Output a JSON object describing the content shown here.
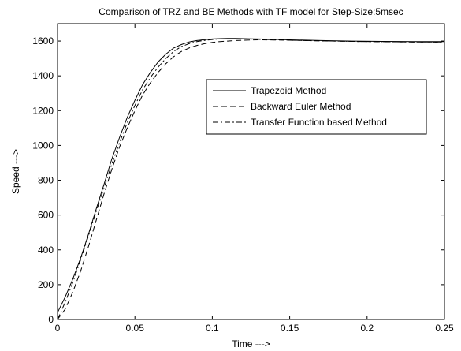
{
  "chart_data": {
    "type": "line",
    "title": "Comparison of TRZ and BE Methods with TF model for Step-Size:5msec",
    "xlabel": "Time --->",
    "ylabel": "Speed --->",
    "xlim": [
      0,
      0.25
    ],
    "ylim": [
      0,
      1700
    ],
    "xticks": [
      0,
      0.05,
      0.1,
      0.15,
      0.2,
      0.25
    ],
    "xtick_labels": [
      "0",
      "0.05",
      "0.1",
      "0.15",
      "0.2",
      "0.25"
    ],
    "yticks": [
      0,
      200,
      400,
      600,
      800,
      1000,
      1200,
      1400,
      1600
    ],
    "ytick_labels": [
      "0",
      "200",
      "400",
      "600",
      "800",
      "1000",
      "1200",
      "1400",
      "1600"
    ],
    "grid": false,
    "legend_position": "top-right",
    "series": [
      {
        "name": "Trapezoid Method",
        "style": "solid",
        "color": "#000000",
        "x": [
          0,
          0.005,
          0.01,
          0.015,
          0.02,
          0.025,
          0.03,
          0.035,
          0.04,
          0.045,
          0.05,
          0.055,
          0.06,
          0.065,
          0.07,
          0.075,
          0.08,
          0.085,
          0.09,
          0.095,
          0.1,
          0.105,
          0.11,
          0.115,
          0.12,
          0.125,
          0.13,
          0.14,
          0.15,
          0.17,
          0.19,
          0.21,
          0.23,
          0.25
        ],
        "values": [
          40,
          130,
          235,
          355,
          490,
          635,
          775,
          920,
          1045,
          1160,
          1260,
          1350,
          1420,
          1480,
          1525,
          1560,
          1580,
          1595,
          1603,
          1608,
          1612,
          1614,
          1615,
          1615,
          1614,
          1613,
          1612,
          1610,
          1607,
          1603,
          1600,
          1598,
          1597,
          1597
        ]
      },
      {
        "name": "Backward Euler Method",
        "style": "dashed",
        "color": "#000000",
        "x": [
          0,
          0.005,
          0.01,
          0.015,
          0.02,
          0.025,
          0.03,
          0.035,
          0.04,
          0.045,
          0.05,
          0.055,
          0.06,
          0.065,
          0.07,
          0.075,
          0.08,
          0.085,
          0.09,
          0.095,
          0.1,
          0.105,
          0.11,
          0.115,
          0.12,
          0.125,
          0.13,
          0.14,
          0.15,
          0.17,
          0.19,
          0.21,
          0.23,
          0.25
        ],
        "values": [
          0,
          60,
          160,
          280,
          420,
          570,
          720,
          860,
          990,
          1100,
          1200,
          1290,
          1360,
          1420,
          1470,
          1510,
          1540,
          1560,
          1575,
          1585,
          1592,
          1597,
          1600,
          1603,
          1605,
          1606,
          1607,
          1606,
          1605,
          1601,
          1598,
          1596,
          1595,
          1595
        ]
      },
      {
        "name": "Transfer Function based Method",
        "style": "dashdot",
        "color": "#000000",
        "x": [
          0,
          0.005,
          0.01,
          0.015,
          0.02,
          0.025,
          0.03,
          0.035,
          0.04,
          0.045,
          0.05,
          0.055,
          0.06,
          0.065,
          0.07,
          0.075,
          0.08,
          0.085,
          0.09,
          0.095,
          0.1,
          0.105,
          0.11,
          0.115,
          0.12,
          0.125,
          0.13,
          0.14,
          0.15,
          0.17,
          0.19,
          0.21,
          0.23,
          0.25
        ],
        "values": [
          0,
          100,
          215,
          345,
          480,
          620,
          755,
          890,
          1015,
          1130,
          1230,
          1320,
          1390,
          1450,
          1500,
          1540,
          1568,
          1585,
          1597,
          1604,
          1609,
          1612,
          1613,
          1613,
          1612,
          1611,
          1610,
          1608,
          1605,
          1601,
          1598,
          1596,
          1595,
          1594
        ]
      }
    ]
  }
}
